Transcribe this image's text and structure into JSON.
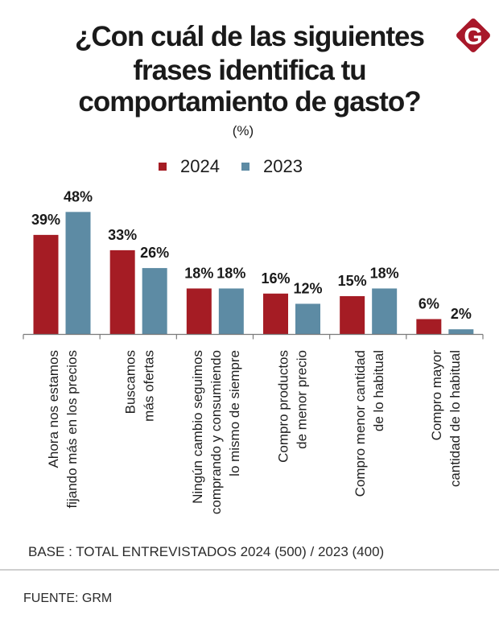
{
  "header": {
    "title_lines": [
      "¿Con cuál de las siguientes",
      "frases identifica tu",
      "comportamiento de gasto?"
    ]
  },
  "brand": {
    "logo_icon": "brand-g-diamond-icon",
    "logo_letter": "G",
    "logo_color": "#a8182a"
  },
  "chart_data": {
    "type": "bar",
    "title": "¿Con cuál de las siguientes frases identifica tu comportamiento de gasto?",
    "subtitle": "(%)",
    "categories": [
      [
        "Ahora nos estamos",
        "fijando más en los precios"
      ],
      [
        "Buscamos",
        "más ofertas"
      ],
      [
        "Ningún cambio seguimos",
        "comprando y consumiendo",
        "lo mismo de siempre"
      ],
      [
        "Compro productos",
        "de menor precio"
      ],
      [
        "Compro menor cantidad",
        "de lo habitual"
      ],
      [
        "Compro mayor",
        "cantidad de lo habitual"
      ]
    ],
    "series": [
      {
        "name": "2024",
        "color": "#a51c24",
        "values": [
          39,
          33,
          18,
          16,
          15,
          6
        ]
      },
      {
        "name": "2023",
        "color": "#5d8ba4",
        "values": [
          48,
          26,
          18,
          12,
          18,
          2
        ]
      }
    ],
    "value_suffix": "%",
    "xlabel": "",
    "ylabel": "",
    "ylim": [
      0,
      50
    ],
    "grid": false,
    "y_axis_visible": false,
    "legend": "top-center"
  },
  "footer": {
    "base_note": "BASE : TOTAL ENTREVISTADOS 2024 (500) / 2023 (400)",
    "source": "FUENTE: GRM"
  }
}
